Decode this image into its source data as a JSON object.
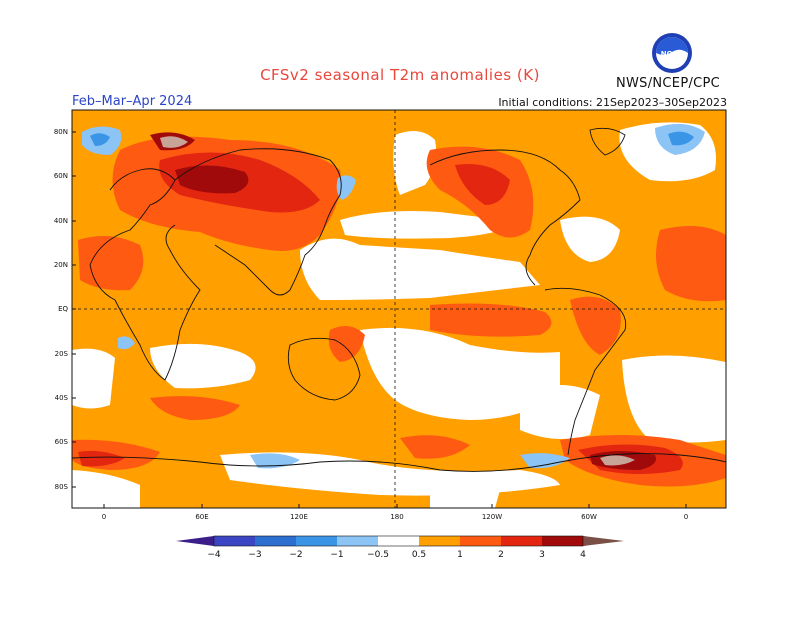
{
  "title": "CFSv2 seasonal T2m anomalies (K)",
  "agency": "NWS/NCEP/CPC",
  "logo_text": "NOAA",
  "season": "Feb–Mar–Apr 2024",
  "initial_conditions": "Initial conditions: 21Sep2023–30Sep2023",
  "lat_ticks": [
    "80N",
    "60N",
    "40N",
    "20N",
    "EQ",
    "20S",
    "40S",
    "60S",
    "80S"
  ],
  "lon_ticks": [
    "0",
    "60E",
    "120E",
    "180",
    "120W",
    "60W",
    "0"
  ],
  "colorbar": {
    "labels": [
      "−4",
      "−3",
      "−2",
      "−1",
      "−0.5",
      "0.5",
      "1",
      "2",
      "3",
      "4"
    ],
    "colors": {
      "lt_m4": "#3b1e8a",
      "m4_m3": "#3c46c4",
      "m3_m2": "#2c6fd1",
      "m2_m1": "#3a95e6",
      "m1_m05": "#8cc4f5",
      "neutral": "#ffffff",
      "p05_p1": "#ff9f00",
      "p1_p2": "#ff5a12",
      "p2_p3": "#e3260f",
      "p3_p4": "#a00a0a",
      "p4_p5": "#c8a398",
      "gt_p5": "#7a5046"
    }
  }
}
